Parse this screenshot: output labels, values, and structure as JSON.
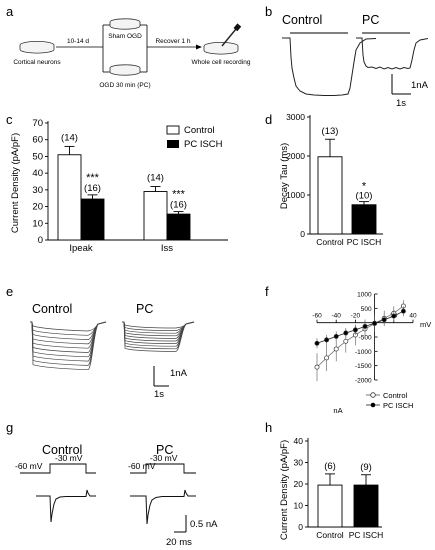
{
  "panel_labels": {
    "a": "a",
    "b": "b",
    "c": "c",
    "d": "d",
    "e": "e",
    "f": "f",
    "g": "g",
    "h": "h"
  },
  "panel_a": {
    "cortical_neurons": "Cortical neurons",
    "culture_time": "10-14 d",
    "sham_ogd": "Sham OGD",
    "ogd_pc": "OGD 30 min (PC)",
    "recover": "Recover 1 h",
    "whole_cell": "Whole cell recording"
  },
  "panel_b": {
    "control": "Control",
    "pc": "PC",
    "scale_y": "1nA",
    "scale_x": "1s"
  },
  "panel_e": {
    "control": "Control",
    "pc": "PC",
    "scale_y": "1nA",
    "scale_x": "1s"
  },
  "panel_g": {
    "control": "Control",
    "pc": "PC",
    "hold": "-60 mV",
    "step": "-30 mV",
    "scale_y": "0.5 nA",
    "scale_x": "20 ms"
  },
  "chart_data": [
    {
      "panel": "c",
      "type": "bar",
      "ylabel": "Current Density (pA/pF)",
      "ylim": [
        0,
        70
      ],
      "yticks": [
        0,
        10,
        20,
        30,
        40,
        50,
        60,
        70
      ],
      "categories": [
        "Ipeak",
        "Iss"
      ],
      "series": [
        {
          "name": "Control",
          "values": [
            51,
            29
          ],
          "errors": [
            5,
            3
          ],
          "n": [
            "(14)",
            "(14)"
          ],
          "sig": [
            "",
            ""
          ],
          "color": "#ffffff"
        },
        {
          "name": "PC ISCH",
          "values": [
            24.5,
            15.5
          ],
          "errors": [
            2.5,
            1.5
          ],
          "n": [
            "(16)",
            "(16)"
          ],
          "sig": [
            "***",
            "***"
          ],
          "color": "#000000"
        }
      ],
      "legend": "top-right"
    },
    {
      "panel": "d",
      "type": "bar",
      "ylabel": "Decay Tau (ms)",
      "ylim": [
        0,
        3000
      ],
      "yticks": [
        0,
        1000,
        2000,
        3000
      ],
      "categories": [
        "Control",
        "PC ISCH"
      ],
      "values": [
        1980,
        750
      ],
      "errors": [
        450,
        80
      ],
      "n": [
        "(13)",
        "(10)"
      ],
      "sig": [
        "",
        "*"
      ],
      "colors": [
        "#ffffff",
        "#000000"
      ]
    },
    {
      "panel": "f",
      "type": "line",
      "xlabel": "mV",
      "ylabel": "nA",
      "xlim": [
        -60,
        40
      ],
      "ylim": [
        -2000,
        1000
      ],
      "xticks": [
        -60,
        -40,
        -20,
        20,
        40
      ],
      "yticks": [
        -2000,
        -1500,
        -1000,
        -500,
        500,
        1000
      ],
      "series": [
        {
          "name": "Control",
          "marker": "open",
          "x": [
            -60,
            -50,
            -40,
            -30,
            -20,
            -10,
            0,
            10,
            20,
            30
          ],
          "y": [
            -1550,
            -1230,
            -920,
            -650,
            -430,
            -220,
            -30,
            150,
            330,
            580
          ]
        },
        {
          "name": "PC ISCH",
          "marker": "filled",
          "x": [
            -60,
            -50,
            -40,
            -30,
            -20,
            -10,
            0,
            10,
            20,
            30
          ],
          "y": [
            -720,
            -600,
            -480,
            -360,
            -250,
            -130,
            -20,
            100,
            230,
            400
          ]
        }
      ],
      "legend": "bottom-right"
    },
    {
      "panel": "h",
      "type": "bar",
      "ylabel": "Current Density (pA/pF)",
      "ylim": [
        0,
        40
      ],
      "yticks": [
        0,
        10,
        20,
        30,
        40
      ],
      "categories": [
        "Control",
        "PC ISCH"
      ],
      "values": [
        19.5,
        19.5
      ],
      "errors": [
        5.2,
        4.8
      ],
      "n": [
        "(6)",
        "(9)"
      ],
      "colors": [
        "#ffffff",
        "#000000"
      ]
    }
  ]
}
